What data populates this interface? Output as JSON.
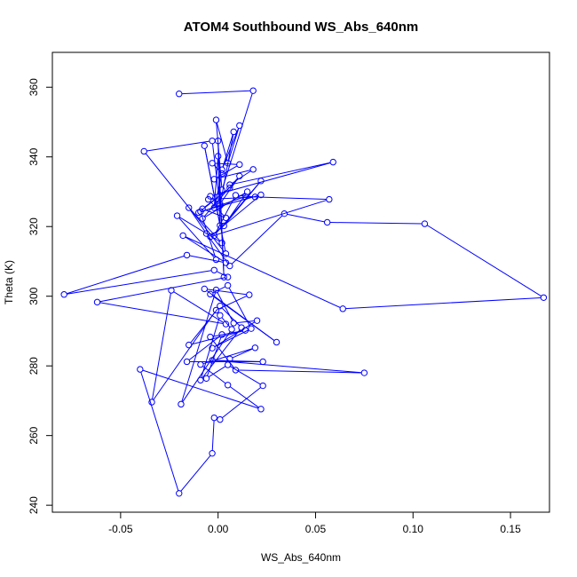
{
  "chart_data": {
    "type": "line",
    "title": "ATOM4 Southbound WS_Abs_640nm",
    "xlabel": "WS_Abs_640nm",
    "ylabel": "Theta (K)",
    "xlim": [
      -0.085,
      0.17
    ],
    "ylim": [
      238,
      370
    ],
    "xticks": [
      -0.05,
      0.0,
      0.05,
      0.1,
      0.15
    ],
    "xtick_labels": [
      "-0.05",
      "0.00",
      "0.05",
      "0.10",
      "0.15"
    ],
    "yticks": [
      240,
      260,
      280,
      300,
      320,
      340,
      360
    ],
    "ytick_labels": [
      "240",
      "260",
      "280",
      "300",
      "320",
      "340",
      "360"
    ],
    "grid": false,
    "marker": "open-circle",
    "series_color": "#0000ff",
    "series": [
      {
        "points": [
          [
            -0.02,
            358.1
          ],
          [
            0.018,
            359.0
          ],
          [
            0.002,
            330.5
          ],
          [
            -0.001,
            350.6
          ],
          [
            0.005,
            338.2
          ],
          [
            0.011,
            349.0
          ],
          [
            0.002,
            336.3
          ],
          [
            0.008,
            347.2
          ],
          [
            0.001,
            326.0
          ],
          [
            -0.003,
            344.6
          ],
          [
            -0.038,
            341.6
          ],
          [
            0.004,
            312.2
          ],
          [
            -0.007,
            343.2
          ],
          [
            0.001,
            320.3
          ],
          [
            0.0,
            344.6
          ],
          [
            0.003,
            305.5
          ],
          [
            0.0,
            340.2
          ],
          [
            -0.002,
            325.4
          ],
          [
            0.002,
            335.2
          ],
          [
            -0.003,
            338.2
          ],
          [
            0.011,
            337.8
          ],
          [
            -0.002,
            333.6
          ],
          [
            0.018,
            336.4
          ],
          [
            0.006,
            332.0
          ],
          [
            0.059,
            338.5
          ],
          [
            -0.004,
            328.7
          ],
          [
            0.001,
            326.5
          ],
          [
            0.011,
            334.5
          ],
          [
            -0.008,
            322.3
          ],
          [
            0.015,
            330.0
          ],
          [
            0.003,
            320.2
          ],
          [
            0.022,
            333.1
          ],
          [
            -0.002,
            317.4
          ],
          [
            0.009,
            329.0
          ],
          [
            0.019,
            328.5
          ],
          [
            -0.005,
            327.8
          ],
          [
            0.004,
            322.5
          ],
          [
            -0.008,
            325.1
          ],
          [
            0.006,
            331.1
          ],
          [
            -0.01,
            324.0
          ],
          [
            0.014,
            328.6
          ],
          [
            0.057,
            327.8
          ],
          [
            -0.004,
            317.1
          ],
          [
            0.022,
            329.1
          ],
          [
            -0.009,
            324.3
          ],
          [
            -0.001,
            310.5
          ],
          [
            -0.021,
            323.1
          ],
          [
            0.002,
            315.3
          ],
          [
            -0.015,
            325.4
          ],
          [
            -0.006,
            318.0
          ],
          [
            0.006,
            308.7
          ],
          [
            0.034,
            323.7
          ],
          [
            0.056,
            321.2
          ],
          [
            0.106,
            320.8
          ],
          [
            0.167,
            299.6
          ],
          [
            0.064,
            296.4
          ],
          [
            -0.018,
            317.4
          ],
          [
            0.004,
            309.6
          ],
          [
            -0.016,
            311.8
          ],
          [
            -0.079,
            300.5
          ],
          [
            -0.002,
            307.5
          ],
          [
            0.005,
            305.5
          ],
          [
            -0.062,
            298.3
          ],
          [
            0.004,
            292.0
          ],
          [
            -0.024,
            301.7
          ],
          [
            -0.034,
            269.6
          ],
          [
            -0.001,
            296.0
          ],
          [
            0.016,
            300.4
          ],
          [
            -0.007,
            302.1
          ],
          [
            0.03,
            286.8
          ],
          [
            -0.004,
            300.6
          ],
          [
            0.005,
            303.1
          ],
          [
            0.017,
            290.7
          ],
          [
            -0.003,
            285.1
          ],
          [
            0.02,
            293.0
          ],
          [
            0.008,
            292.3
          ],
          [
            -0.001,
            301.8
          ],
          [
            -0.019,
            269.0
          ],
          [
            0.007,
            290.5
          ],
          [
            0.001,
            294.5
          ],
          [
            -0.009,
            275.9
          ],
          [
            0.012,
            291.0
          ],
          [
            0.001,
            297.2
          ],
          [
            -0.015,
            286.0
          ],
          [
            0.014,
            290.2
          ],
          [
            -0.004,
            288.3
          ],
          [
            0.009,
            278.8
          ],
          [
            0.075,
            278.0
          ],
          [
            -0.003,
            281.6
          ],
          [
            0.023,
            281.2
          ],
          [
            -0.016,
            281.2
          ],
          [
            0.002,
            289.0
          ],
          [
            -0.006,
            276.4
          ],
          [
            0.005,
            280.3
          ],
          [
            0.023,
            274.3
          ],
          [
            0.001,
            264.6
          ],
          [
            -0.002,
            265.1
          ],
          [
            -0.003,
            254.9
          ],
          [
            -0.02,
            243.4
          ],
          [
            -0.04,
            279.0
          ],
          [
            0.022,
            267.6
          ],
          [
            0.005,
            274.5
          ],
          [
            -0.009,
            280.4
          ],
          [
            0.019,
            285.2
          ],
          [
            0.006,
            282.0
          ]
        ]
      }
    ]
  }
}
